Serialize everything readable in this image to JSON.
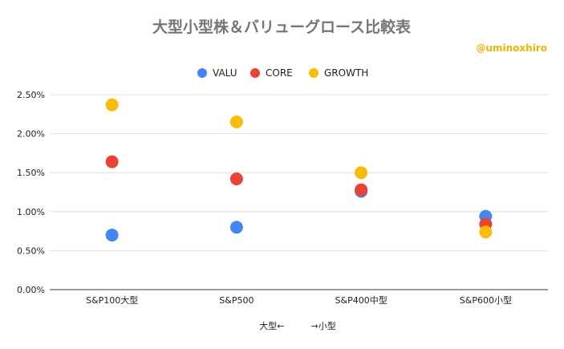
{
  "chart_data": {
    "type": "scatter",
    "title": "大型小型株＆バリューグロース比較表",
    "watermark": "@uminoxhiro",
    "xlabel": "大型←　　　→小型",
    "ylabel": "",
    "categories": [
      "S&P100大型",
      "S&P500",
      "S&P400中型",
      "S&P600小型"
    ],
    "y_tick_labels": [
      "0.00%",
      "0.50%",
      "1.00%",
      "1.50%",
      "2.00%",
      "2.50%"
    ],
    "ylim": [
      0,
      2.6
    ],
    "grid": true,
    "legend_position": "top",
    "series": [
      {
        "name": "VALU",
        "color": "#4285f4",
        "values": [
          0.7,
          0.8,
          1.26,
          0.94
        ]
      },
      {
        "name": "CORE",
        "color": "#ea4335",
        "values": [
          1.64,
          1.42,
          1.28,
          0.84
        ]
      },
      {
        "name": "GROWTH",
        "color": "#fbbc04",
        "values": [
          2.37,
          2.15,
          1.5,
          0.74
        ]
      }
    ]
  }
}
